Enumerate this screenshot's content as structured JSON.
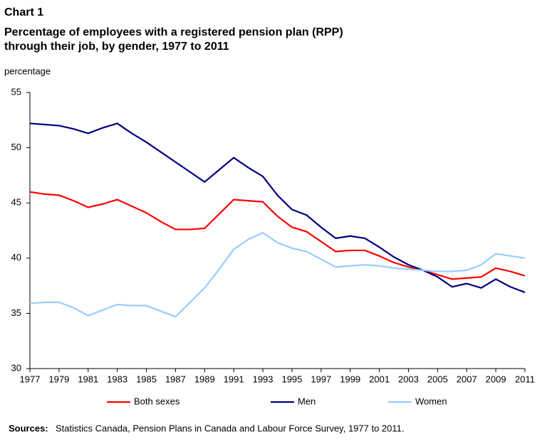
{
  "chart_data": {
    "type": "line",
    "title": "Chart 1",
    "subtitle": [
      "Percentage of employees with a registered pension plan (RPP)",
      "through their job, by gender, 1977 to 2011"
    ],
    "y_label": "percentage",
    "source_label": "Sources:",
    "source": "Statistics Canada, Pension Plans in Canada and Labour Force Survey, 1977 to 2011.",
    "x": [
      1977,
      1978,
      1979,
      1980,
      1981,
      1982,
      1983,
      1984,
      1985,
      1986,
      1987,
      1988,
      1989,
      1990,
      1991,
      1992,
      1993,
      1994,
      1995,
      1996,
      1997,
      1998,
      1999,
      2000,
      2001,
      2002,
      2003,
      2004,
      2005,
      2006,
      2007,
      2008,
      2009,
      2010,
      2011
    ],
    "series": [
      {
        "name": "Both sexes",
        "color": "#ff0000",
        "values": [
          46.0,
          45.8,
          45.7,
          45.2,
          44.6,
          44.9,
          45.3,
          44.7,
          44.1,
          43.3,
          42.6,
          42.6,
          42.7,
          44.0,
          45.3,
          45.2,
          45.1,
          43.8,
          42.8,
          42.4,
          41.5,
          40.6,
          40.7,
          40.7,
          40.2,
          39.6,
          39.2,
          38.9,
          38.5,
          38.1,
          38.2,
          38.3,
          39.1,
          38.8,
          38.4
        ]
      },
      {
        "name": "Men",
        "color": "#000080",
        "values": [
          52.2,
          52.1,
          52.0,
          51.7,
          51.3,
          51.8,
          52.2,
          51.3,
          50.5,
          49.6,
          48.7,
          47.8,
          46.9,
          48.0,
          49.1,
          48.2,
          47.4,
          45.7,
          44.4,
          43.9,
          42.8,
          41.8,
          42.0,
          41.8,
          41.0,
          40.1,
          39.4,
          38.9,
          38.3,
          37.4,
          37.7,
          37.3,
          38.1,
          37.4,
          36.9
        ]
      },
      {
        "name": "Women",
        "color": "#99ccff",
        "values": [
          35.9,
          36.0,
          36.0,
          35.5,
          34.8,
          35.3,
          35.8,
          35.7,
          35.7,
          35.2,
          34.7,
          36.0,
          37.3,
          39.0,
          40.8,
          41.7,
          42.3,
          41.4,
          40.9,
          40.6,
          39.9,
          39.2,
          39.3,
          39.4,
          39.3,
          39.1,
          39.0,
          38.9,
          38.8,
          38.8,
          38.9,
          39.4,
          40.4,
          40.2,
          40.0
        ]
      }
    ],
    "xlim": [
      1977,
      2011
    ],
    "xticks": [
      1977,
      1979,
      1981,
      1983,
      1985,
      1987,
      1989,
      1991,
      1993,
      1995,
      1997,
      1999,
      2001,
      2003,
      2005,
      2007,
      2009,
      2011
    ],
    "ylim": [
      30,
      55
    ],
    "yticks": [
      30,
      35,
      40,
      45,
      50,
      55
    ],
    "grid": false
  }
}
